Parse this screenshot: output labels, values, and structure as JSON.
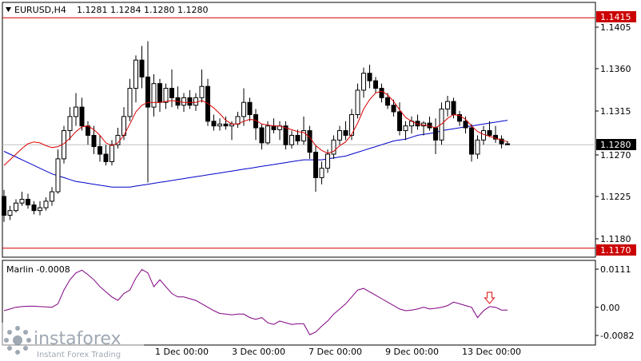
{
  "header": {
    "symbol": "EURUSD,H4",
    "open": "1.1281",
    "high": "1.1284",
    "low": "1.1280",
    "close": "1.1280"
  },
  "indicator": {
    "label": "Marlin -0.0008"
  },
  "price_axis_labels": [
    "1.1405",
    "1.1360",
    "1.1315",
    "1.1270",
    "1.1225",
    "1.1180"
  ],
  "indicator_axis_labels": [
    "0.0111",
    "0.00",
    "-0.0082"
  ],
  "time_labels": [
    "1 Dec 00:00",
    "3 Dec 00:00",
    "7 Dec 00:00",
    "9 Dec 00:00",
    "13 Dec 00:00"
  ],
  "hlines": [
    {
      "label": "1.1415",
      "value": 1.1415
    },
    {
      "label": "1.1170",
      "value": 1.117
    }
  ],
  "current_price_label": "1.1280",
  "watermark": {
    "brand": "instaforex",
    "tagline": "Instant Forex Trading"
  },
  "colors": {
    "bull": "#ffffff",
    "bear": "#000000",
    "fast_ma": "#dc0000",
    "slow_ma": "#0000c8",
    "oscillator": "#800080",
    "hline": "#cc0000",
    "arrow": "#e03030"
  },
  "chart_data": {
    "type": "candlestick",
    "symbol": "EURUSD",
    "timeframe": "H4",
    "ylim": [
      1.1165,
      1.1425
    ],
    "ohlc": [
      [
        1.1225,
        1.1232,
        1.1198,
        1.1205
      ],
      [
        1.1205,
        1.1215,
        1.12,
        1.121
      ],
      [
        1.121,
        1.1222,
        1.1208,
        1.1218
      ],
      [
        1.1218,
        1.123,
        1.1215,
        1.1222
      ],
      [
        1.1222,
        1.1228,
        1.1212,
        1.1216
      ],
      [
        1.1216,
        1.122,
        1.1206,
        1.121
      ],
      [
        1.121,
        1.122,
        1.1205,
        1.1213
      ],
      [
        1.1213,
        1.1224,
        1.121,
        1.122
      ],
      [
        1.122,
        1.1235,
        1.1215,
        1.123
      ],
      [
        1.123,
        1.1275,
        1.1228,
        1.1265
      ],
      [
        1.1265,
        1.13,
        1.126,
        1.1295
      ],
      [
        1.1295,
        1.132,
        1.1285,
        1.131
      ],
      [
        1.131,
        1.1335,
        1.13,
        1.132
      ],
      [
        1.132,
        1.133,
        1.1295,
        1.13
      ],
      [
        1.13,
        1.1305,
        1.128,
        1.129
      ],
      [
        1.129,
        1.13,
        1.127,
        1.1278
      ],
      [
        1.1278,
        1.129,
        1.1262,
        1.127
      ],
      [
        1.127,
        1.128,
        1.1258,
        1.1262
      ],
      [
        1.1262,
        1.1285,
        1.1258,
        1.128
      ],
      [
        1.128,
        1.1298,
        1.1276,
        1.129
      ],
      [
        1.129,
        1.132,
        1.1285,
        1.131
      ],
      [
        1.131,
        1.135,
        1.1305,
        1.134
      ],
      [
        1.134,
        1.1375,
        1.1325,
        1.137
      ],
      [
        1.137,
        1.1385,
        1.134,
        1.1352
      ],
      [
        1.1352,
        1.139,
        1.124,
        1.132
      ],
      [
        1.132,
        1.1355,
        1.131,
        1.1345
      ],
      [
        1.1345,
        1.135,
        1.1315,
        1.1325
      ],
      [
        1.1325,
        1.1345,
        1.1318,
        1.134
      ],
      [
        1.134,
        1.136,
        1.132,
        1.133
      ],
      [
        1.133,
        1.1342,
        1.1318,
        1.1322
      ],
      [
        1.1322,
        1.1335,
        1.1315,
        1.133
      ],
      [
        1.133,
        1.1338,
        1.1318,
        1.1322
      ],
      [
        1.1322,
        1.1335,
        1.1316,
        1.133
      ],
      [
        1.133,
        1.136,
        1.1325,
        1.1342
      ],
      [
        1.1342,
        1.135,
        1.13,
        1.1305
      ],
      [
        1.1305,
        1.1312,
        1.1295,
        1.13
      ],
      [
        1.13,
        1.1308,
        1.1295,
        1.1302
      ],
      [
        1.1302,
        1.131,
        1.1296,
        1.13
      ],
      [
        1.13,
        1.1305,
        1.1285,
        1.1302
      ],
      [
        1.1302,
        1.1315,
        1.1298,
        1.131
      ],
      [
        1.131,
        1.134,
        1.13,
        1.1325
      ],
      [
        1.1325,
        1.133,
        1.1305,
        1.1312
      ],
      [
        1.1312,
        1.1318,
        1.1285,
        1.1298
      ],
      [
        1.1298,
        1.1302,
        1.1275,
        1.1282
      ],
      [
        1.1282,
        1.1305,
        1.128,
        1.13
      ],
      [
        1.13,
        1.1308,
        1.1292,
        1.1296
      ],
      [
        1.1296,
        1.1305,
        1.1285,
        1.13
      ],
      [
        1.13,
        1.1305,
        1.1275,
        1.128
      ],
      [
        1.128,
        1.1295,
        1.1276,
        1.129
      ],
      [
        1.129,
        1.1296,
        1.128,
        1.1284
      ],
      [
        1.1284,
        1.131,
        1.128,
        1.1295
      ],
      [
        1.1295,
        1.13,
        1.1265,
        1.1272
      ],
      [
        1.1272,
        1.128,
        1.123,
        1.1245
      ],
      [
        1.1245,
        1.1262,
        1.1238,
        1.1255
      ],
      [
        1.1255,
        1.1275,
        1.125,
        1.127
      ],
      [
        1.127,
        1.129,
        1.1265,
        1.1285
      ],
      [
        1.1285,
        1.13,
        1.128,
        1.1295
      ],
      [
        1.1295,
        1.1305,
        1.1285,
        1.129
      ],
      [
        1.129,
        1.1318,
        1.1285,
        1.1312
      ],
      [
        1.1312,
        1.1345,
        1.1308,
        1.1338
      ],
      [
        1.1338,
        1.1362,
        1.133,
        1.1356
      ],
      [
        1.1356,
        1.1365,
        1.134,
        1.1348
      ],
      [
        1.1348,
        1.1352,
        1.1335,
        1.134
      ],
      [
        1.134,
        1.1345,
        1.1325,
        1.133
      ],
      [
        1.133,
        1.1335,
        1.1318,
        1.1322
      ],
      [
        1.1322,
        1.1328,
        1.131,
        1.1315
      ],
      [
        1.1315,
        1.1325,
        1.129,
        1.1295
      ],
      [
        1.1295,
        1.1305,
        1.1285,
        1.13
      ],
      [
        1.13,
        1.131,
        1.1292,
        1.1305
      ],
      [
        1.1305,
        1.1312,
        1.1296,
        1.13
      ],
      [
        1.13,
        1.1305,
        1.129,
        1.1303
      ],
      [
        1.1303,
        1.131,
        1.1295,
        1.1298
      ],
      [
        1.1298,
        1.1308,
        1.127,
        1.1285
      ],
      [
        1.1285,
        1.1325,
        1.128,
        1.1318
      ],
      [
        1.1318,
        1.1332,
        1.131,
        1.1326
      ],
      [
        1.1326,
        1.133,
        1.1308,
        1.1312
      ],
      [
        1.1312,
        1.1316,
        1.13,
        1.1305
      ],
      [
        1.1305,
        1.131,
        1.1292,
        1.1298
      ],
      [
        1.1298,
        1.1302,
        1.1262,
        1.127
      ],
      [
        1.127,
        1.129,
        1.1265,
        1.1285
      ],
      [
        1.1285,
        1.13,
        1.128,
        1.1295
      ],
      [
        1.1295,
        1.1305,
        1.1288,
        1.129
      ],
      [
        1.129,
        1.13,
        1.1282,
        1.1286
      ],
      [
        1.1286,
        1.129,
        1.1276,
        1.1281
      ],
      [
        1.1281,
        1.1284,
        1.128,
        1.128
      ]
    ],
    "series": [
      {
        "name": "",
        "values": [
          1.1258,
          1.1264,
          1.127,
          1.1276,
          1.1281,
          1.1283,
          1.1282,
          1.1279,
          1.1277,
          1.1278,
          1.1281,
          1.1287,
          1.1294,
          1.1299,
          1.13,
          1.1296,
          1.129,
          1.1282,
          1.1279,
          1.1282,
          1.129,
          1.1302,
          1.1315,
          1.1322,
          1.1325,
          1.1325,
          1.1325,
          1.1326,
          1.1327,
          1.1326,
          1.1325,
          1.1325,
          1.1325,
          1.1327,
          1.1324,
          1.1319,
          1.1313,
          1.1306,
          1.1302,
          1.1302,
          1.1305,
          1.1307,
          1.1306,
          1.1302,
          1.1301,
          1.13,
          1.13,
          1.1298,
          1.1296,
          1.1294,
          1.1293,
          1.1288,
          1.1279,
          1.1274,
          1.1271,
          1.1273,
          1.1279,
          1.1283,
          1.1291,
          1.1303,
          1.1318,
          1.1328,
          1.1335,
          1.1337,
          1.1333,
          1.1326,
          1.1317,
          1.1309,
          1.1305,
          1.1302,
          1.1301,
          1.13,
          1.1298,
          1.1302,
          1.1308,
          1.1312,
          1.1311,
          1.1307,
          1.13,
          1.1294,
          1.1291,
          1.1289,
          1.1287,
          1.1285,
          1.1283
        ]
      },
      {
        "name": "",
        "values": [
          1.1273,
          1.127,
          1.1267,
          1.1264,
          1.1261,
          1.1258,
          1.1255,
          1.1252,
          1.1249,
          1.1247,
          1.1245,
          1.1243,
          1.1241,
          1.124,
          1.1239,
          1.1238,
          1.1237,
          1.1236,
          1.1235,
          1.1235,
          1.1235,
          1.1235,
          1.1236,
          1.1237,
          1.1238,
          1.1239,
          1.124,
          1.1241,
          1.1242,
          1.1243,
          1.1244,
          1.1245,
          1.1246,
          1.1247,
          1.1248,
          1.1249,
          1.125,
          1.1251,
          1.1252,
          1.1253,
          1.1254,
          1.1255,
          1.1256,
          1.1257,
          1.1258,
          1.1259,
          1.126,
          1.1261,
          1.1262,
          1.1263,
          1.1264,
          1.1264,
          1.1264,
          1.1264,
          1.1265,
          1.1266,
          1.1267,
          1.1268,
          1.127,
          1.1272,
          1.1274,
          1.1276,
          1.1278,
          1.128,
          1.1282,
          1.1284,
          1.1285,
          1.1286,
          1.1288,
          1.129,
          1.1291,
          1.1292,
          1.1293,
          1.1295,
          1.1296,
          1.1297,
          1.1298,
          1.1299,
          1.13,
          1.1301,
          1.1302,
          1.1303,
          1.1304,
          1.1305,
          1.1306
        ]
      }
    ],
    "oscillator": {
      "name": "Marlin",
      "ylim": [
        -0.0085,
        0.0115
      ],
      "values": [
        -0.001,
        -0.0005,
        0.0,
        0.0002,
        0.0003,
        0.0003,
        0.0002,
        0.0001,
        0.0,
        0.001,
        0.005,
        0.008,
        0.01,
        0.0108,
        0.0095,
        0.008,
        0.006,
        0.0045,
        0.003,
        0.002,
        0.004,
        0.005,
        0.0085,
        0.011,
        0.01,
        0.006,
        0.008,
        0.006,
        0.004,
        0.003,
        0.003,
        0.0025,
        0.002,
        0.001,
        0.0,
        -0.001,
        -0.0018,
        -0.002,
        -0.0022,
        -0.002,
        -0.002,
        -0.003,
        -0.0035,
        -0.003,
        -0.0045,
        -0.005,
        -0.004,
        -0.0045,
        -0.005,
        -0.0048,
        -0.0048,
        -0.008,
        -0.0072,
        -0.0055,
        -0.004,
        -0.002,
        -0.0005,
        0.001,
        0.003,
        0.005,
        0.0055,
        0.0045,
        0.0035,
        0.0025,
        0.0015,
        0.0005,
        -0.0005,
        -0.001,
        -0.0008,
        -0.0005,
        0.0,
        -0.0005,
        -0.0003,
        0.0,
        0.0005,
        0.0015,
        0.001,
        0.0005,
        0.0,
        -0.003,
        -0.001,
        0.0002,
        0.0,
        -0.0008,
        -0.0008
      ]
    },
    "marker": {
      "type": "down-arrow",
      "bar_index": 81
    }
  }
}
